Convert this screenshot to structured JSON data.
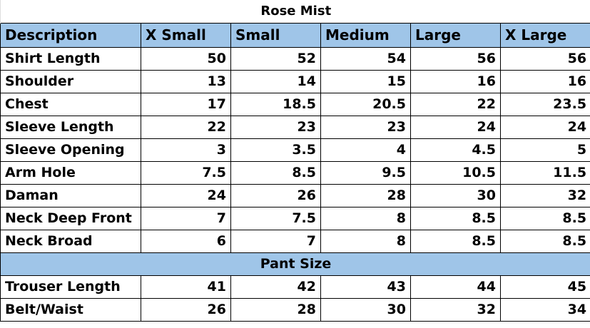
{
  "title": "Rose Mist",
  "header": [
    "Description",
    "X Small",
    "Small",
    "Medium",
    "Large",
    "X Large"
  ],
  "shirt_rows": [
    [
      "Shirt Length",
      "50",
      "52",
      "54",
      "56",
      "56"
    ],
    [
      "Shoulder",
      "13",
      "14",
      "15",
      "16",
      "16"
    ],
    [
      "Chest",
      "17",
      "18.5",
      "20.5",
      "22",
      "23.5"
    ],
    [
      "Sleeve Length",
      "22",
      "23",
      "23",
      "24",
      "24"
    ],
    [
      "Sleeve Opening",
      "3",
      "3.5",
      "4",
      "4.5",
      "5"
    ],
    [
      "Arm Hole",
      "7.5",
      "8.5",
      "9.5",
      "10.5",
      "11.5"
    ],
    [
      "Daman",
      "24",
      "26",
      "28",
      "30",
      "32"
    ],
    [
      "Neck Deep Front",
      "7",
      "7.5",
      "8",
      "8.5",
      "8.5"
    ],
    [
      "Neck Broad",
      "6",
      "7",
      "8",
      "8.5",
      "8.5"
    ]
  ],
  "pant_section": "Pant Size",
  "pant_rows": [
    [
      "Trouser Length",
      "41",
      "42",
      "43",
      "44",
      "45"
    ],
    [
      "Belt/Waist",
      "26",
      "28",
      "30",
      "32",
      "34"
    ]
  ],
  "colors": {
    "header_bg": "#9fc5e8"
  }
}
